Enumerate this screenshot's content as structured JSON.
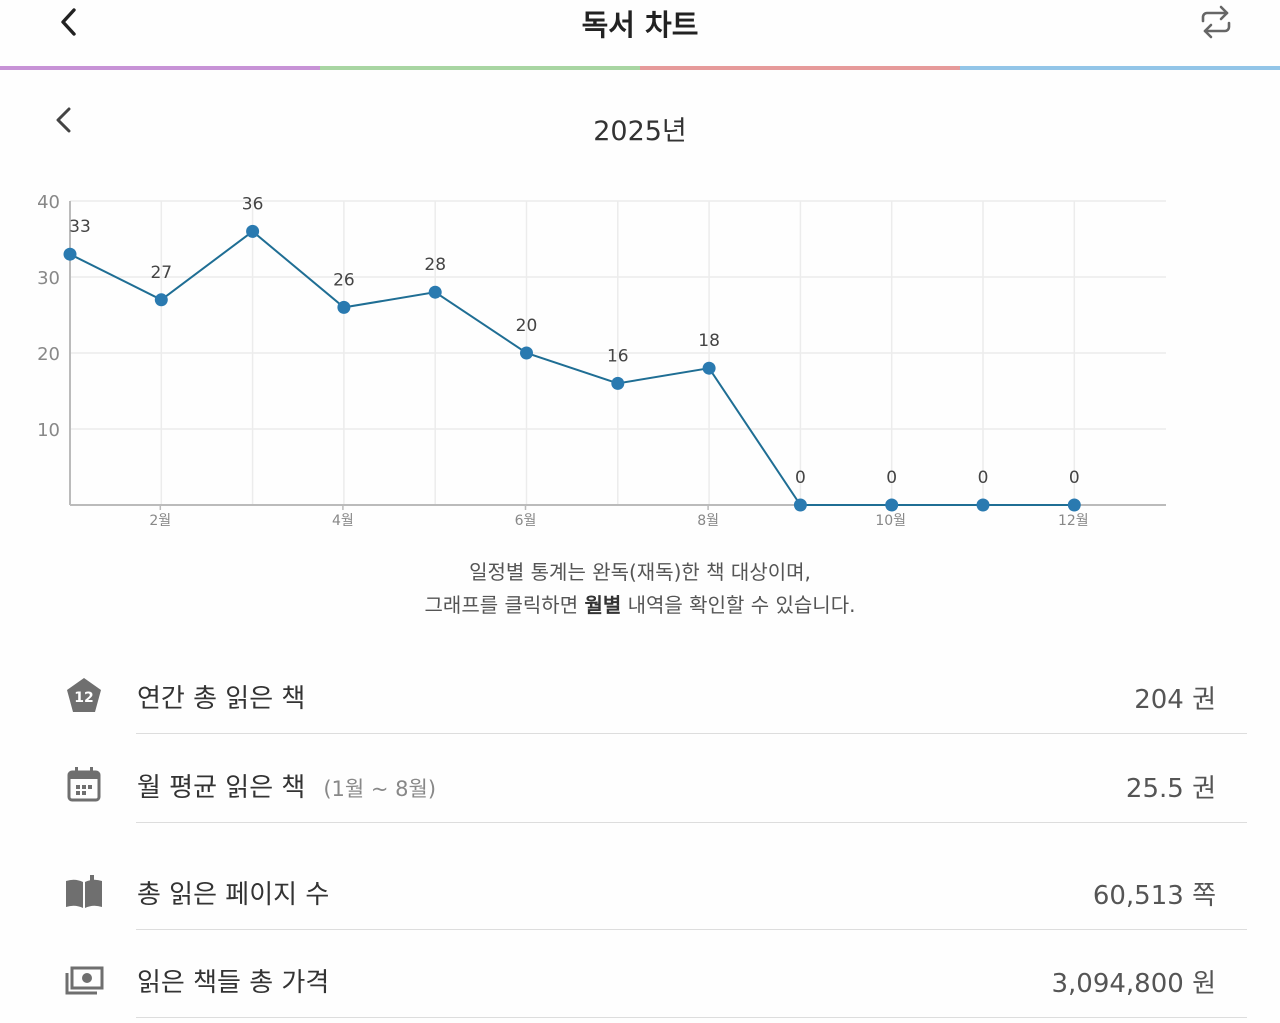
{
  "header": {
    "title": "독서 차트",
    "colors": [
      "#c792d6",
      "#a8d5a2",
      "#e69a9a",
      "#92c5e8"
    ]
  },
  "year_nav": {
    "year": "2025년"
  },
  "chart_data": {
    "type": "line",
    "categories": [
      "1월",
      "2월",
      "3월",
      "4월",
      "5월",
      "6월",
      "7월",
      "8월",
      "9월",
      "10월",
      "11월",
      "12월"
    ],
    "x_tick_labels": [
      "2월",
      "4월",
      "6월",
      "8월",
      "10월",
      "12월"
    ],
    "values": [
      33,
      27,
      36,
      26,
      28,
      20,
      16,
      18,
      0,
      0,
      0,
      0
    ],
    "y_ticks": [
      10,
      20,
      30,
      40
    ],
    "ylim": [
      0,
      40
    ],
    "grid": true,
    "line_color": "#1f6e94",
    "point_color": "#2a7ab0"
  },
  "note": {
    "line1": "일정별 통계는 완독(재독)한 책 대상이며,",
    "line2_pre": "그래프를 클릭하면 ",
    "line2_bold": "월별",
    "line2_post": " 내역을 확인할 수 있습니다."
  },
  "stats": {
    "annual": {
      "label": "연간 총 읽은 책",
      "value": "204 권",
      "badge": "12",
      "icon": "calendar-badge-icon"
    },
    "monthly": {
      "label": "월 평균 읽은 책",
      "sub": "(1월 ~ 8월)",
      "value": "25.5 권",
      "icon": "calendar-icon"
    },
    "pages": {
      "label": "총 읽은 페이지 수",
      "value": "60,513 쪽",
      "icon": "open-book-icon"
    },
    "price": {
      "label": "읽은 책들 총 가격",
      "value": "3,094,800 원",
      "icon": "money-icon"
    }
  }
}
